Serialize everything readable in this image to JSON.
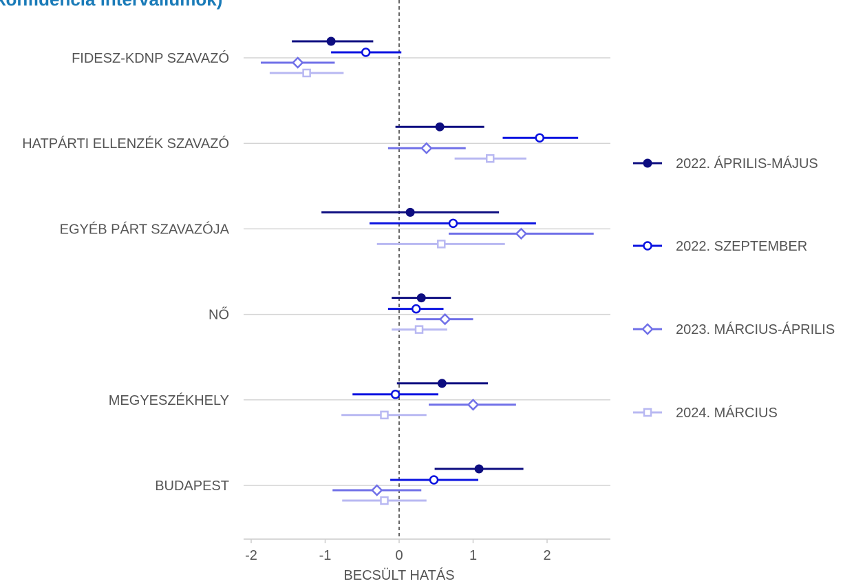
{
  "title_fragment": "konfidencia intervallumok)",
  "colors": {
    "title": "#1a7bb8",
    "grid": "#d4d4d4",
    "axis": "#cccccc",
    "zero_line": "#000000",
    "text": "#555555"
  },
  "chart_data": {
    "type": "scatter",
    "subtype": "forest-plot",
    "xlabel": "BECSÜLT HATÁS",
    "ylabel": "",
    "xlim": [
      -2.1,
      2.85
    ],
    "xticks": [
      -2,
      -1,
      0,
      1,
      2
    ],
    "xtick_labels": [
      "-2",
      "-1",
      "0",
      "1",
      "2"
    ],
    "reference_line": 0,
    "grid": "horizontal",
    "legend_position": "right",
    "categories": [
      "FIDESZ-KDNP SZAVAZÓ",
      "HATPÁRTI ELLENZÉK SZAVAZÓ",
      "EGYÉB PÁRT SZAVAZÓJA",
      "NŐ",
      "MEGYESZÉKHELY",
      "BUDAPEST"
    ],
    "series": [
      {
        "name": "2022. ÁPRILIS-MÁJUS",
        "color": "#0d0d80",
        "marker": "filled-circle",
        "estimates": [
          -0.92,
          0.55,
          0.15,
          0.3,
          0.58,
          1.08
        ],
        "lower": [
          -1.45,
          -0.05,
          -1.05,
          -0.1,
          -0.03,
          0.48
        ],
        "upper": [
          -0.35,
          1.15,
          1.35,
          0.7,
          1.2,
          1.68
        ]
      },
      {
        "name": "2022. SZEPTEMBER",
        "color": "#0a12e0",
        "marker": "open-circle",
        "estimates": [
          -0.45,
          1.9,
          0.73,
          0.23,
          -0.05,
          0.47
        ],
        "lower": [
          -0.92,
          1.4,
          -0.4,
          -0.15,
          -0.63,
          -0.12
        ],
        "upper": [
          0.03,
          2.42,
          1.85,
          0.6,
          0.53,
          1.07
        ]
      },
      {
        "name": "2023. MÁRCIUS-ÁPRILIS",
        "color": "#7070e8",
        "marker": "open-diamond",
        "estimates": [
          -1.37,
          0.37,
          1.65,
          0.62,
          1.0,
          -0.3
        ],
        "lower": [
          -1.87,
          -0.15,
          0.67,
          0.23,
          0.4,
          -0.9
        ],
        "upper": [
          -0.87,
          0.9,
          2.63,
          1.0,
          1.58,
          0.3
        ]
      },
      {
        "name": "2024. MÁRCIUS",
        "color": "#b8b8f2",
        "marker": "open-square",
        "estimates": [
          -1.25,
          1.23,
          0.57,
          0.27,
          -0.2,
          -0.2
        ],
        "lower": [
          -1.75,
          0.75,
          -0.3,
          -0.1,
          -0.78,
          -0.77
        ],
        "upper": [
          -0.75,
          1.72,
          1.43,
          0.65,
          0.37,
          0.37
        ]
      }
    ]
  }
}
